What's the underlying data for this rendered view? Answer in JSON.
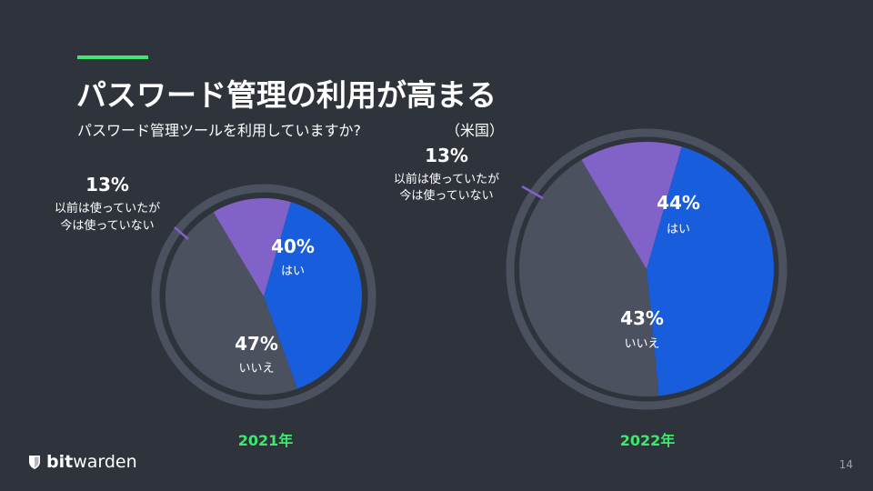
{
  "slide": {
    "title": "パスワード管理の利用が高まる",
    "subtitle": "パスワード管理ツールを利用していますか?",
    "region": "（米国）",
    "page_number": "14"
  },
  "brand": {
    "logo_bold": "bit",
    "logo_light": "warden",
    "accent_color": "#3ee86f",
    "background_color": "#2f333c",
    "shield_icon": "shield-icon"
  },
  "chart_data": [
    {
      "type": "pie",
      "title": "2021年",
      "slices": [
        {
          "label": "はい",
          "value": 40,
          "pct_text": "40%",
          "color": "#175ddc"
        },
        {
          "label": "いいえ",
          "value": 47,
          "pct_text": "47%",
          "color": "#4c5160"
        },
        {
          "label": "以前は使っていたが今は使っていない",
          "label_line1": "以前は使っていたが",
          "label_line2": "今は使っていない",
          "value": 13,
          "pct_text": "13%",
          "color": "#8162c9"
        }
      ]
    },
    {
      "type": "pie",
      "title": "2022年",
      "slices": [
        {
          "label": "はい",
          "value": 44,
          "pct_text": "44%",
          "color": "#175ddc"
        },
        {
          "label": "いいえ",
          "value": 43,
          "pct_text": "43%",
          "color": "#4c5160"
        },
        {
          "label": "以前は使っていたが今は使っていない",
          "label_line1": "以前は使っていたが",
          "label_line2": "今は使っていない",
          "value": 13,
          "pct_text": "13%",
          "color": "#8162c9"
        }
      ]
    }
  ]
}
